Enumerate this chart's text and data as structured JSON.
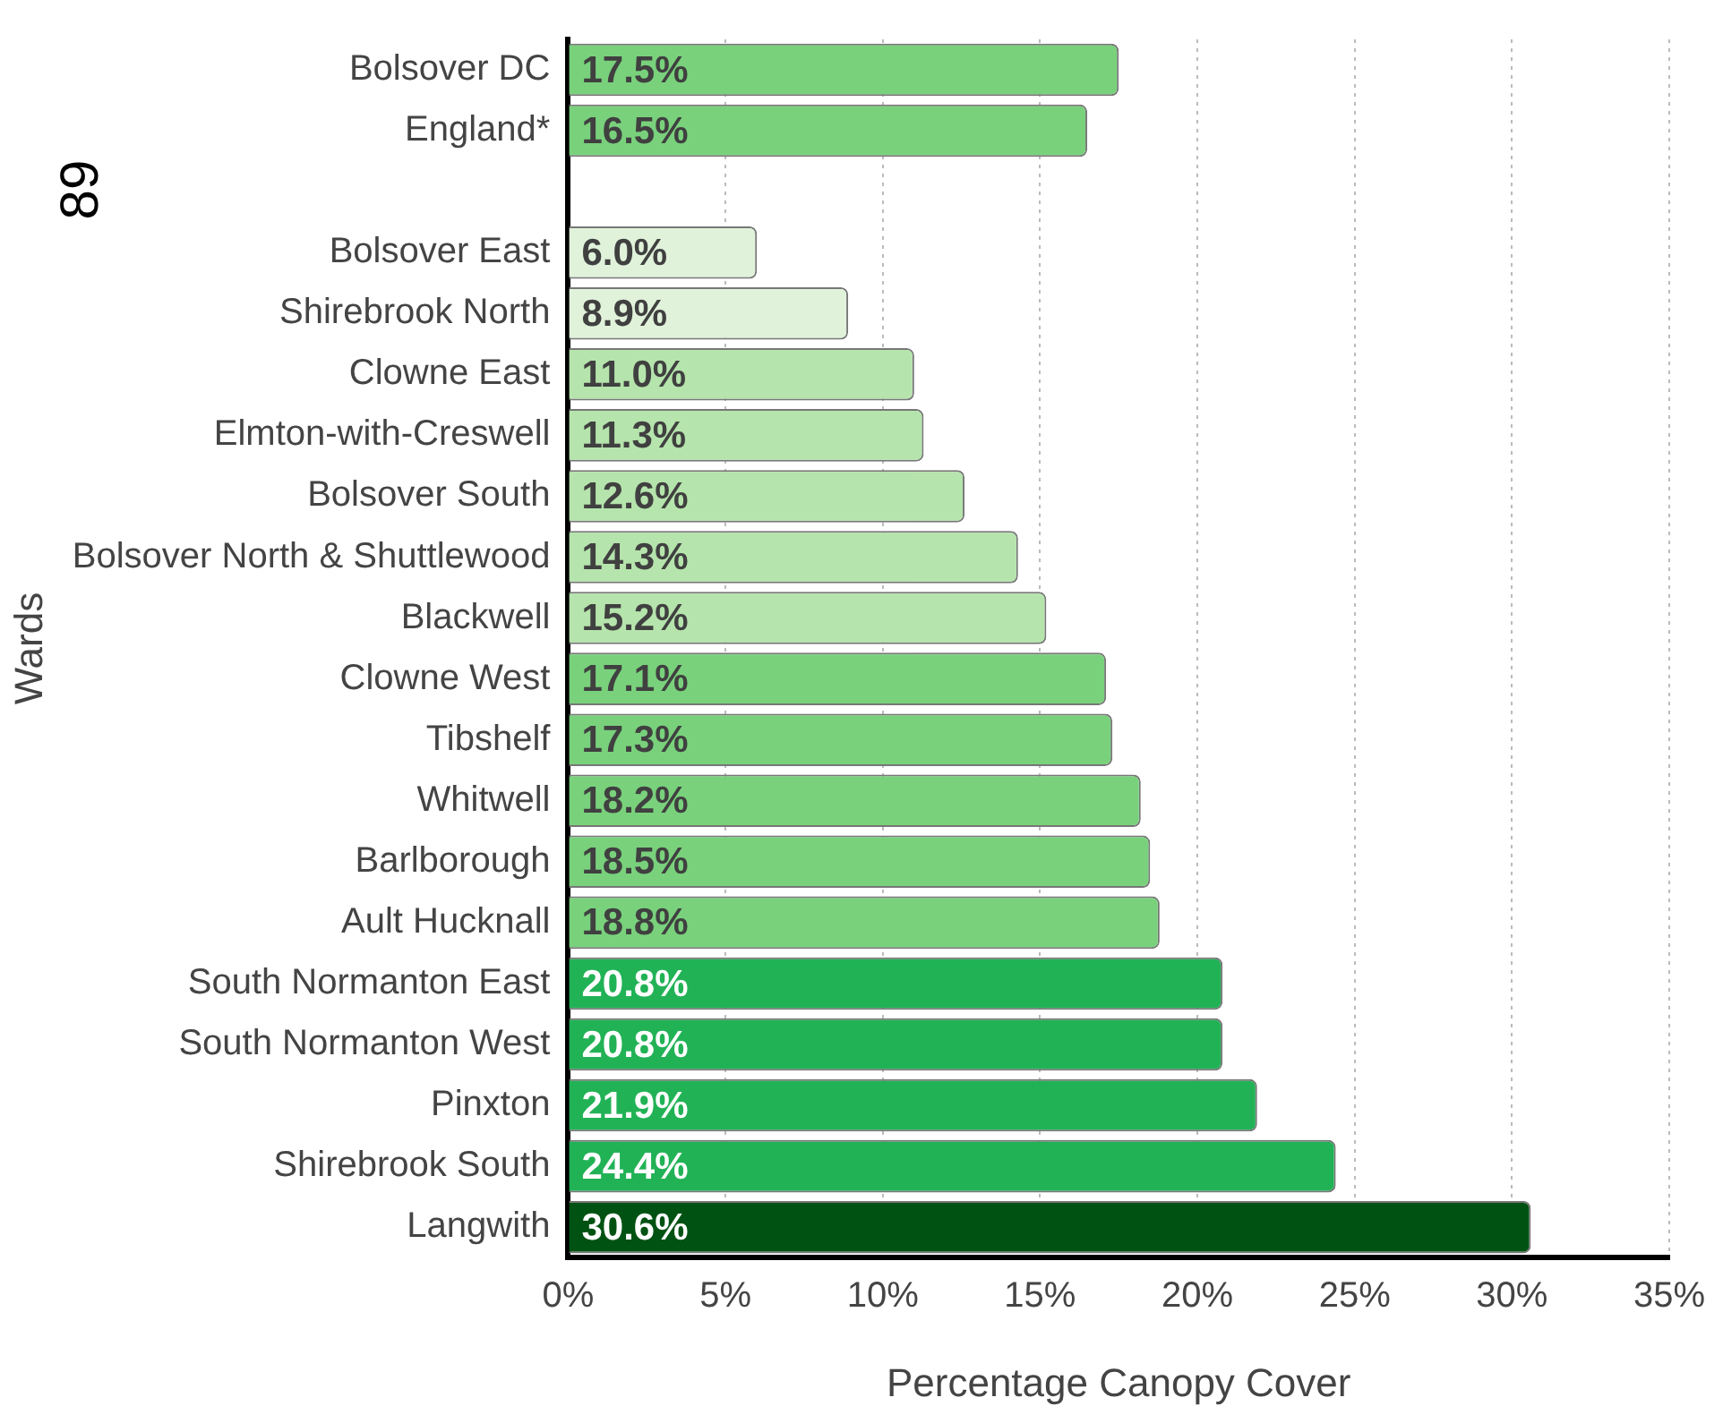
{
  "chart_data": {
    "type": "bar",
    "orientation": "horizontal",
    "xlabel": "Percentage Canopy Cover",
    "ylabel": "Wards",
    "annotations": [
      "89"
    ],
    "categories": [
      "Bolsover DC",
      "England*",
      null,
      "Bolsover East",
      "Shirebrook North",
      "Clowne East",
      "Elmton-with-Creswell",
      "Bolsover South",
      "Bolsover North & Shuttlewood",
      "Blackwell",
      "Clowne West",
      "Tibshelf",
      "Whitwell",
      "Barlborough",
      "Ault Hucknall",
      "South Normanton East",
      "South Normanton West",
      "Pinxton",
      "Shirebrook South",
      "Langwith"
    ],
    "values": [
      17.5,
      16.5,
      null,
      6.0,
      8.9,
      11.0,
      11.3,
      12.6,
      14.3,
      15.2,
      17.1,
      17.3,
      18.2,
      18.5,
      18.8,
      20.8,
      20.8,
      21.9,
      24.4,
      30.6
    ],
    "value_labels": [
      "17.5%",
      "16.5%",
      null,
      "6.0%",
      "8.9%",
      "11.0%",
      "11.3%",
      "12.6%",
      "14.3%",
      "15.2%",
      "17.1%",
      "17.3%",
      "18.2%",
      "18.5%",
      "18.8%",
      "20.8%",
      "20.8%",
      "21.9%",
      "24.4%",
      "30.6%"
    ],
    "colors": [
      "#79d17c",
      "#79d17c",
      "#79d17c",
      "#e0f2da",
      "#e0f2da",
      "#b5e4ac",
      "#b5e4ac",
      "#b5e4ac",
      "#b5e4ac",
      "#b5e4ac",
      "#79d17c",
      "#79d17c",
      "#79d17c",
      "#79d17c",
      "#79d17c",
      "#22b256",
      "#22b256",
      "#22b256",
      "#22b256",
      "#005212"
    ],
    "xlim": [
      0,
      35
    ],
    "xticks": [
      {
        "value": 0,
        "label": "0%"
      },
      {
        "value": 5,
        "label": "5%"
      },
      {
        "value": 10,
        "label": "10%"
      },
      {
        "value": 15,
        "label": "15%"
      },
      {
        "value": 20,
        "label": "20%"
      },
      {
        "value": 25,
        "label": "25%"
      },
      {
        "value": 30,
        "label": "30%"
      },
      {
        "value": 35,
        "label": "35%"
      }
    ],
    "grid": "x",
    "legend": false
  }
}
